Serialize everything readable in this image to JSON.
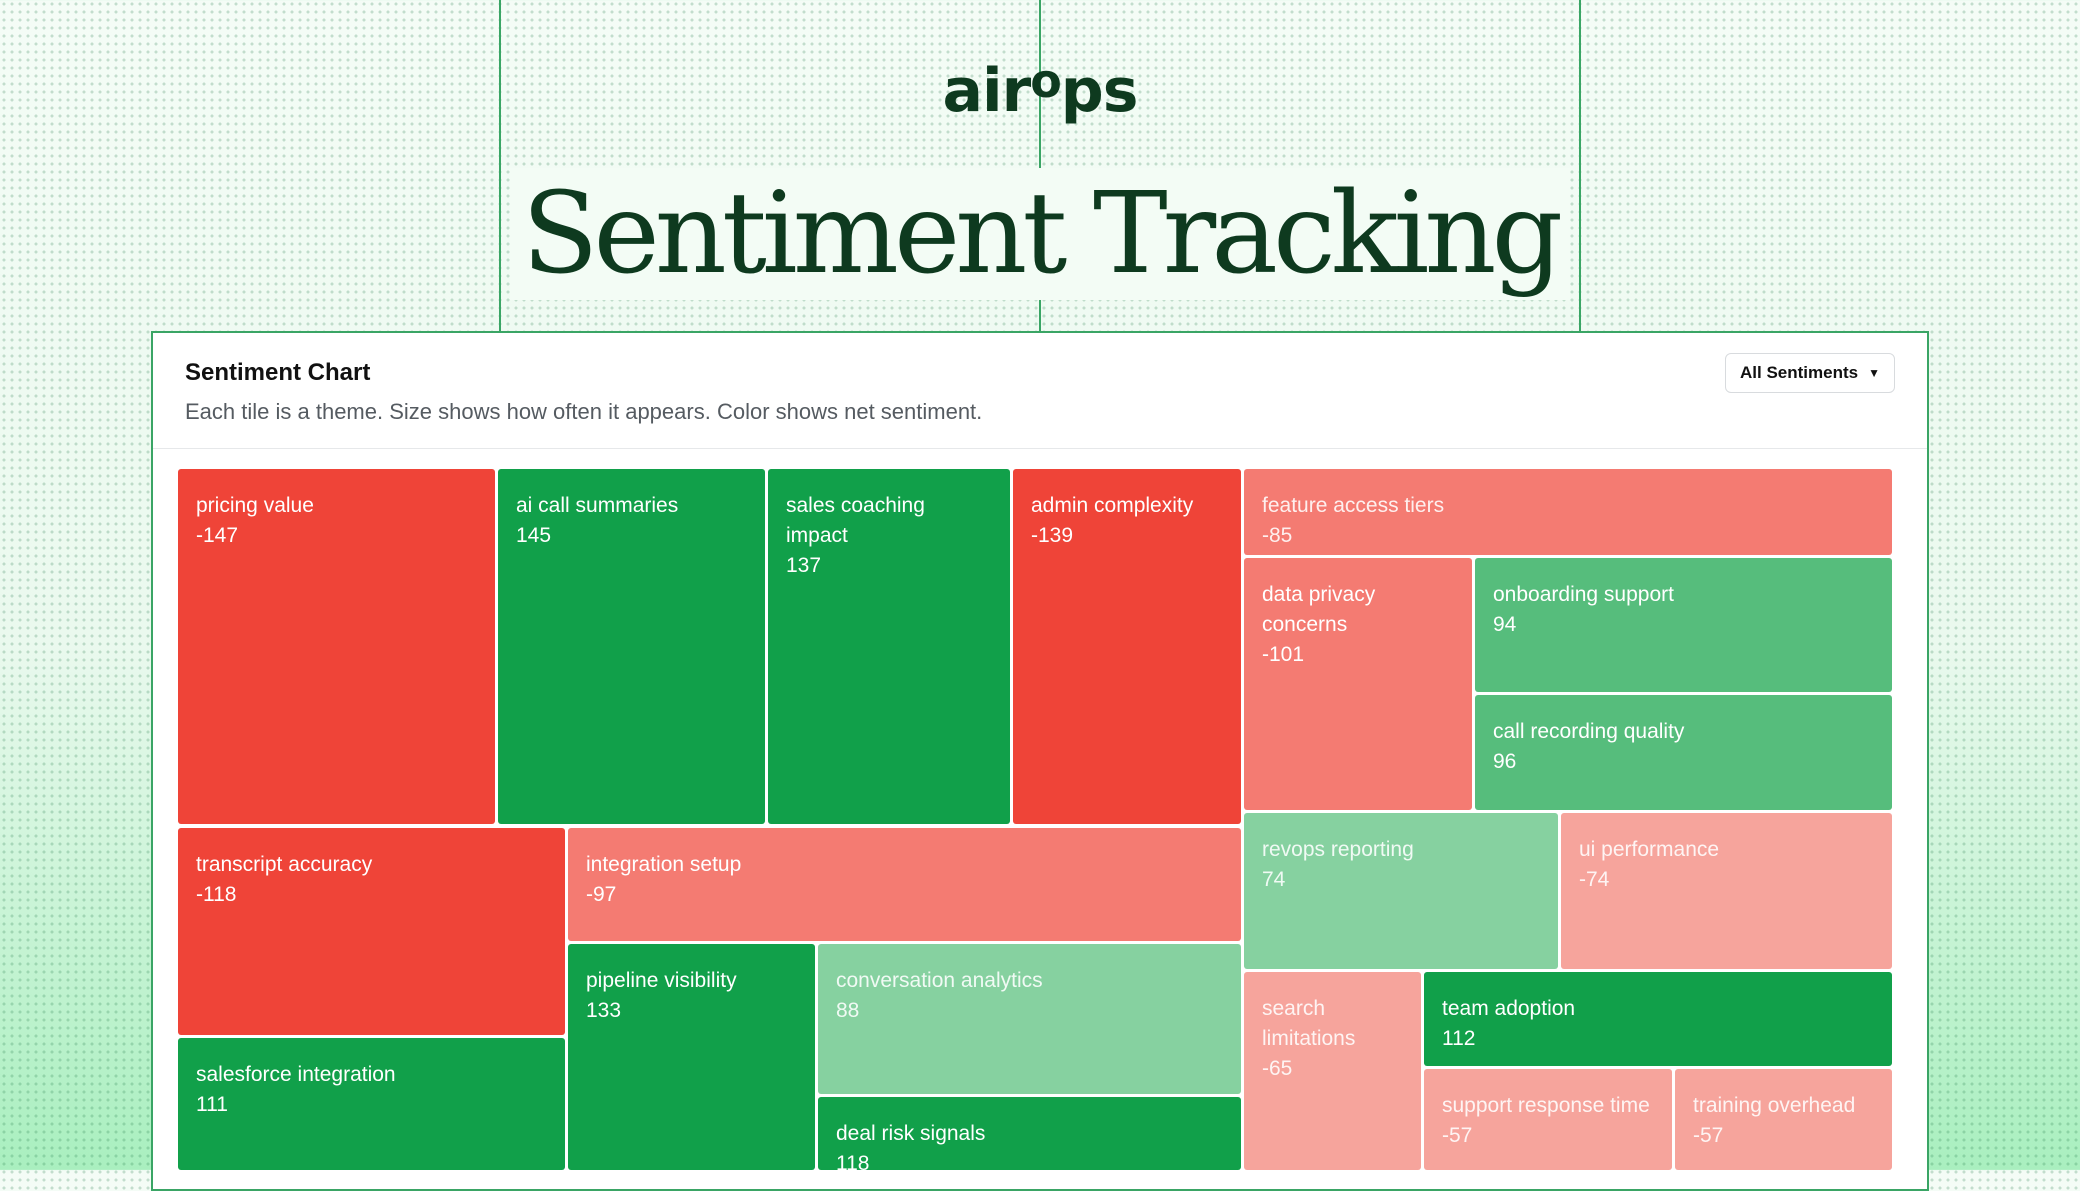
{
  "brand": {
    "logo_prefix": "air",
    "logo_o": "o",
    "logo_suffix": "ps"
  },
  "headline": "Sentiment Tracking",
  "card": {
    "title": "Sentiment Chart",
    "subtitle": "Each tile is a theme. Size shows how often it appears. Color shows net sentiment.",
    "filter_label": "All Sentiments"
  },
  "colors": {
    "strong_negative": "#ef4438",
    "negative": "#f47b72",
    "mild_negative": "#f6a49c",
    "strong_positive": "#11a04a",
    "positive": "#56bd7c",
    "mild_positive": "#86d1a0"
  },
  "chart_data": {
    "type": "treemap",
    "value_meaning": "net sentiment",
    "tiles": [
      {
        "name": "pricing value",
        "value": -147
      },
      {
        "name": "ai call summaries",
        "value": 145
      },
      {
        "name": "sales coaching impact",
        "value": 137
      },
      {
        "name": "admin complexity",
        "value": -139
      },
      {
        "name": "feature access tiers",
        "value": -85
      },
      {
        "name": "data privacy concerns",
        "value": -101
      },
      {
        "name": "onboarding support",
        "value": 94
      },
      {
        "name": "call recording quality",
        "value": 96
      },
      {
        "name": "transcript accuracy",
        "value": -118
      },
      {
        "name": "integration setup",
        "value": -97
      },
      {
        "name": "revops reporting",
        "value": 74
      },
      {
        "name": "ui performance",
        "value": -74
      },
      {
        "name": "pipeline visibility",
        "value": 133
      },
      {
        "name": "conversation analytics",
        "value": 88
      },
      {
        "name": "search limitations",
        "value": -65
      },
      {
        "name": "team adoption",
        "value": 112
      },
      {
        "name": "salesforce integration",
        "value": 111
      },
      {
        "name": "deal risk signals",
        "value": 118
      },
      {
        "name": "support response time",
        "value": -57
      },
      {
        "name": "training overhead",
        "value": -57
      }
    ]
  }
}
